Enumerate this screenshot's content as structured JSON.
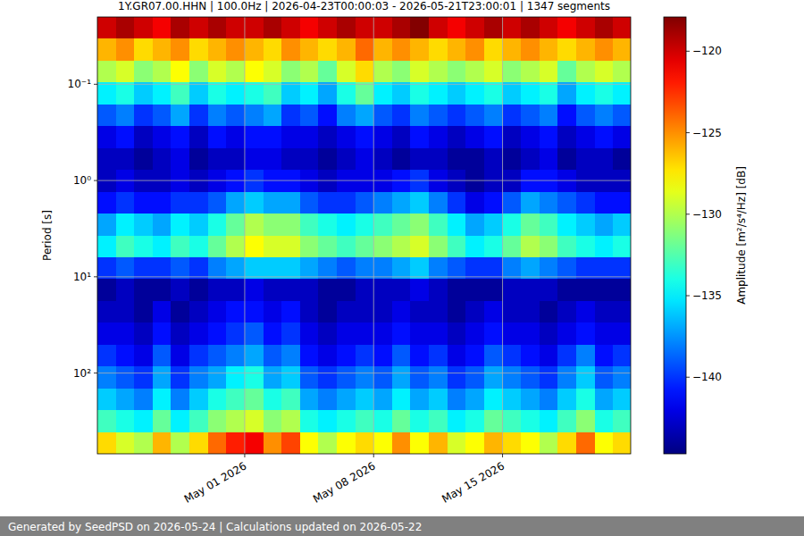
{
  "chart_data": {
    "type": "heatmap",
    "title": "1Y.GR07.00.HHN | 100.0Hz | 2026-04-23T00:00:03 - 2026-05-21T23:00:01 | 1347 segments",
    "y_label": "Period [s]",
    "footer": "Generated by SeedPSD on 2026-05-24 | Calculations updated on 2026-05-22",
    "log": "y",
    "grid": true,
    "xlim": [
      "2026-04-23T00:00:03",
      "2026-05-21T23:00:01"
    ],
    "xticks": [
      {
        "value": "2026-05-01T00:00:00",
        "label": "May 01 2026"
      },
      {
        "value": "2026-05-08T00:00:00",
        "label": "May 08 2026"
      },
      {
        "value": "2026-05-15T00:00:00",
        "label": "May 15 2026"
      }
    ],
    "ylim": [
      690,
      0.02
    ],
    "yticks": [
      {
        "value": 0.1,
        "label": "10⁻¹"
      },
      {
        "value": 1,
        "label": "10⁰"
      },
      {
        "value": 10,
        "label": "10¹"
      },
      {
        "value": 100,
        "label": "10²"
      }
    ],
    "x_bins": [
      "2026-04-23T00:00:03",
      "2026-04-24T00:00:00",
      "2026-04-25T00:00:00",
      "2026-04-26T00:00:00",
      "2026-04-27T00:00:00",
      "2026-04-28T00:00:00",
      "2026-04-29T00:00:00",
      "2026-04-30T00:00:00",
      "2026-05-01T00:00:00",
      "2026-05-02T00:00:00",
      "2026-05-03T00:00:00",
      "2026-05-04T00:00:00",
      "2026-05-05T00:00:00",
      "2026-05-06T00:00:00",
      "2026-05-07T00:00:00",
      "2026-05-08T00:00:00",
      "2026-05-09T00:00:00",
      "2026-05-10T00:00:00",
      "2026-05-11T00:00:00",
      "2026-05-12T00:00:00",
      "2026-05-13T00:00:00",
      "2026-05-14T00:00:00",
      "2026-05-15T00:00:00",
      "2026-05-16T00:00:00",
      "2026-05-17T00:00:00",
      "2026-05-18T00:00:00",
      "2026-05-19T00:00:00",
      "2026-05-20T00:00:00",
      "2026-05-21T00:00:00",
      "2026-05-21T23:00:01"
    ],
    "y_bins": [
      0.02,
      0.0337,
      0.0569,
      0.0959,
      0.162,
      0.272,
      0.459,
      0.774,
      1.31,
      2.2,
      3.72,
      6.26,
      10.5,
      17.8,
      30,
      50.6,
      85.3,
      144,
      243,
      409,
      690
    ],
    "values": [
      [
        -120,
        -119,
        -120,
        -121,
        -119,
        -120,
        -119,
        -120,
        -120,
        -119,
        -120,
        -121,
        -120,
        -119,
        -120,
        -120,
        -119,
        -118,
        -120,
        -121,
        -120,
        -119,
        -120,
        -119,
        -120,
        -121,
        -120,
        -119,
        -120
      ],
      [
        -126,
        -125,
        -127,
        -126,
        -125,
        -127,
        -126,
        -125,
        -126,
        -127,
        -125,
        -126,
        -127,
        -126,
        -124,
        -126,
        -125,
        -126,
        -127,
        -126,
        -125,
        -127,
        -126,
        -125,
        -126,
        -127,
        -126,
        -125,
        -126
      ],
      [
        -130,
        -129,
        -131,
        -130,
        -128,
        -131,
        -129,
        -130,
        -128,
        -129,
        -131,
        -130,
        -132,
        -129,
        -127,
        -130,
        -131,
        -129,
        -130,
        -131,
        -130,
        -129,
        -131,
        -130,
        -129,
        -132,
        -130,
        -129,
        -130
      ],
      [
        -135,
        -134,
        -136,
        -135,
        -133,
        -136,
        -134,
        -135,
        -134,
        -133,
        -136,
        -135,
        -137,
        -134,
        -132,
        -135,
        -136,
        -134,
        -135,
        -136,
        -135,
        -134,
        -136,
        -135,
        -134,
        -137,
        -135,
        -134,
        -135
      ],
      [
        -139,
        -138,
        -140,
        -139,
        -137,
        -140,
        -138,
        -139,
        -138,
        -137,
        -140,
        -139,
        -141,
        -138,
        -137,
        -139,
        -140,
        -138,
        -139,
        -140,
        -139,
        -138,
        -140,
        -139,
        -138,
        -141,
        -139,
        -138,
        -139
      ],
      [
        -142,
        -141,
        -143,
        -142,
        -141,
        -143,
        -141,
        -142,
        -141,
        -141,
        -142,
        -142,
        -143,
        -142,
        -141,
        -142,
        -143,
        -141,
        -142,
        -143,
        -142,
        -141,
        -143,
        -142,
        -141,
        -143,
        -142,
        -141,
        -142
      ],
      [
        -143,
        -143,
        -144,
        -143,
        -142,
        -144,
        -143,
        -143,
        -142,
        -142,
        -143,
        -143,
        -144,
        -143,
        -142,
        -143,
        -144,
        -143,
        -143,
        -144,
        -144,
        -143,
        -144,
        -143,
        -142,
        -144,
        -143,
        -143,
        -144
      ],
      [
        -143,
        -142,
        -143,
        -143,
        -142,
        -143,
        -142,
        -141,
        -140,
        -141,
        -141,
        -142,
        -143,
        -142,
        -142,
        -142,
        -141,
        -140,
        -142,
        -143,
        -144,
        -143,
        -143,
        -141,
        -141,
        -142,
        -143,
        -143,
        -143
      ],
      [
        -141,
        -140,
        -141,
        -141,
        -140,
        -140,
        -139,
        -137,
        -136,
        -137,
        -137,
        -139,
        -140,
        -140,
        -139,
        -138,
        -137,
        -136,
        -138,
        -140,
        -142,
        -141,
        -139,
        -137,
        -138,
        -139,
        -140,
        -141,
        -141
      ],
      [
        -137,
        -135,
        -136,
        -137,
        -135,
        -136,
        -134,
        -132,
        -130,
        -131,
        -131,
        -133,
        -134,
        -135,
        -134,
        -133,
        -132,
        -131,
        -133,
        -135,
        -137,
        -136,
        -134,
        -132,
        -133,
        -135,
        -136,
        -137,
        -136
      ],
      [
        -135,
        -133,
        -134,
        -135,
        -133,
        -134,
        -132,
        -130,
        -128,
        -129,
        -129,
        -131,
        -132,
        -133,
        -132,
        -131,
        -130,
        -129,
        -131,
        -133,
        -135,
        -134,
        -132,
        -130,
        -131,
        -133,
        -134,
        -135,
        -134
      ],
      [
        -140,
        -139,
        -140,
        -140,
        -139,
        -140,
        -138,
        -137,
        -136,
        -136,
        -136,
        -137,
        -138,
        -139,
        -138,
        -138,
        -137,
        -136,
        -138,
        -139,
        -140,
        -140,
        -138,
        -137,
        -138,
        -139,
        -140,
        -140,
        -140
      ],
      [
        -144,
        -143,
        -144,
        -144,
        -143,
        -144,
        -143,
        -143,
        -142,
        -143,
        -143,
        -143,
        -144,
        -144,
        -143,
        -143,
        -143,
        -142,
        -143,
        -144,
        -144,
        -144,
        -143,
        -143,
        -143,
        -144,
        -144,
        -144,
        -144
      ],
      [
        -143,
        -143,
        -144,
        -142,
        -144,
        -143,
        -142,
        -141,
        -141,
        -142,
        -141,
        -143,
        -144,
        -143,
        -143,
        -143,
        -142,
        -143,
        -143,
        -144,
        -143,
        -142,
        -143,
        -143,
        -144,
        -143,
        -142,
        -143,
        -143
      ],
      [
        -142,
        -142,
        -143,
        -141,
        -143,
        -142,
        -141,
        -140,
        -139,
        -141,
        -140,
        -142,
        -143,
        -142,
        -142,
        -142,
        -141,
        -142,
        -142,
        -143,
        -142,
        -141,
        -142,
        -142,
        -143,
        -142,
        -141,
        -142,
        -142
      ],
      [
        -140,
        -141,
        -142,
        -139,
        -142,
        -140,
        -139,
        -138,
        -137,
        -139,
        -138,
        -141,
        -142,
        -141,
        -140,
        -141,
        -139,
        -141,
        -140,
        -142,
        -141,
        -139,
        -140,
        -141,
        -142,
        -140,
        -138,
        -141,
        -140
      ],
      [
        -138,
        -139,
        -140,
        -137,
        -140,
        -138,
        -137,
        -135,
        -134,
        -137,
        -136,
        -139,
        -140,
        -139,
        -138,
        -139,
        -137,
        -139,
        -138,
        -140,
        -139,
        -137,
        -138,
        -139,
        -140,
        -138,
        -136,
        -139,
        -138
      ],
      [
        -136,
        -137,
        -138,
        -135,
        -138,
        -136,
        -134,
        -133,
        -132,
        -134,
        -133,
        -137,
        -138,
        -137,
        -136,
        -137,
        -135,
        -137,
        -136,
        -138,
        -137,
        -135,
        -136,
        -137,
        -138,
        -136,
        -134,
        -137,
        -136
      ],
      [
        -133,
        -134,
        -135,
        -132,
        -135,
        -133,
        -131,
        -130,
        -129,
        -131,
        -130,
        -134,
        -135,
        -134,
        -133,
        -134,
        -132,
        -134,
        -133,
        -135,
        -134,
        -132,
        -133,
        -134,
        -135,
        -133,
        -131,
        -134,
        -133
      ],
      [
        -127,
        -129,
        -130,
        -126,
        -130,
        -127,
        -124,
        -122,
        -121,
        -125,
        -123,
        -128,
        -130,
        -128,
        -127,
        -128,
        -125,
        -128,
        -126,
        -129,
        -128,
        -126,
        -127,
        -128,
        -130,
        -127,
        -124,
        -128,
        -127
      ]
    ],
    "colorbar": {
      "label": "Amplitude [m²/s⁴/Hz] [dB]",
      "range": [
        -144.7,
        -117.9
      ],
      "ticks": [
        {
          "value": -120,
          "label": "−120"
        },
        {
          "value": -125,
          "label": "−125"
        },
        {
          "value": -130,
          "label": "−130"
        },
        {
          "value": -135,
          "label": "−135"
        },
        {
          "value": -140,
          "label": "−140"
        }
      ]
    }
  }
}
